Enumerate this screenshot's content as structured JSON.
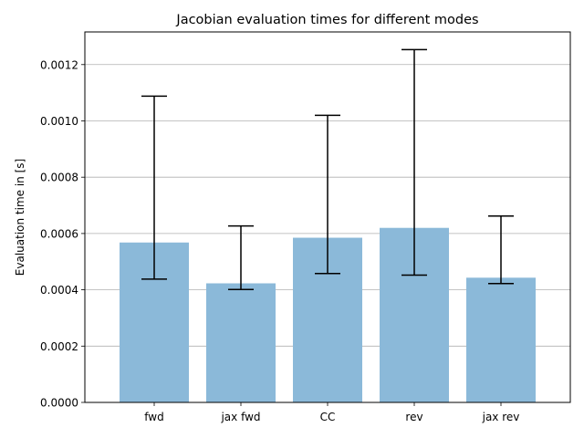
{
  "chart_data": {
    "type": "bar",
    "title": "Jacobian evaluation times for different modes",
    "xlabel": "",
    "ylabel": "Evaluation time in [s]",
    "categories": [
      "fwd",
      "jax fwd",
      "CC",
      "rev",
      "jax rev"
    ],
    "values": [
      0.000568,
      0.000423,
      0.000585,
      0.00062,
      0.000443
    ],
    "error_low": [
      0.000438,
      0.000401,
      0.000458,
      0.000452,
      0.000422
    ],
    "error_high": [
      0.001088,
      0.000627,
      0.00102,
      0.001253,
      0.000662
    ],
    "ylim": [
      0,
      0.001316
    ],
    "yticks": [
      "0.0000",
      "0.0002",
      "0.0004",
      "0.0006",
      "0.0008",
      "0.0010",
      "0.0012"
    ],
    "ytick_values": [
      0,
      0.0002,
      0.0004,
      0.0006,
      0.0008,
      0.001,
      0.0012
    ],
    "grid": "horizontal",
    "colors": {
      "bar": "#8bb9d9",
      "error": "#000000",
      "grid": "#b0b0b0"
    }
  }
}
